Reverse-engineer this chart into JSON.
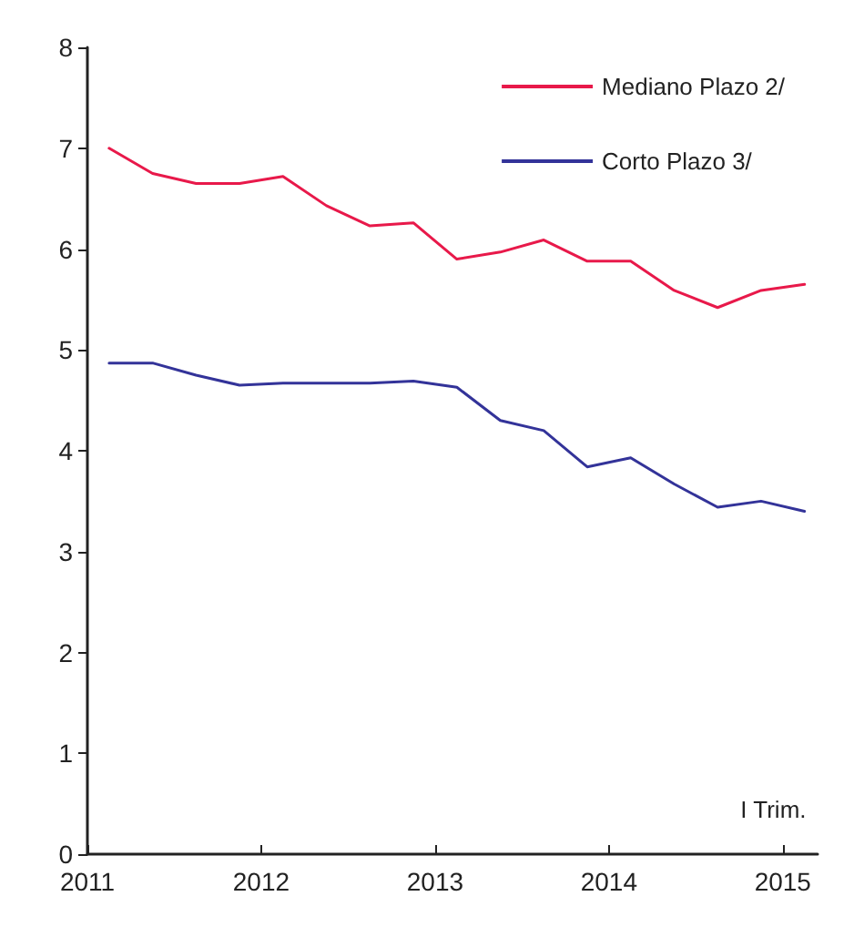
{
  "chart_data": {
    "type": "line",
    "x": [
      2011.125,
      2011.375,
      2011.625,
      2011.875,
      2012.125,
      2012.375,
      2012.625,
      2012.875,
      2013.125,
      2013.375,
      2013.625,
      2013.875,
      2014.125,
      2014.375,
      2014.625,
      2014.875,
      2015.125
    ],
    "series": [
      {
        "name": "Mediano Plazo 2/",
        "color": "#e8194a",
        "values": [
          7.0,
          6.75,
          6.65,
          6.65,
          6.72,
          6.43,
          6.23,
          6.26,
          5.9,
          5.97,
          6.09,
          5.88,
          5.88,
          5.59,
          5.42,
          5.59,
          5.65
        ]
      },
      {
        "name": "Corto Plazo 3/",
        "color": "#333399",
        "values": [
          4.87,
          4.87,
          4.75,
          4.65,
          4.67,
          4.67,
          4.67,
          4.69,
          4.63,
          4.3,
          4.2,
          3.84,
          3.93,
          3.67,
          3.44,
          3.5,
          3.4
        ]
      }
    ],
    "xlim": [
      2011,
      2015.2
    ],
    "xticks": [
      2011,
      2012,
      2013,
      2014,
      2015
    ],
    "ylim": [
      0,
      8
    ],
    "yticks": [
      0,
      1,
      2,
      3,
      4,
      5,
      6,
      7,
      8
    ],
    "annotations": [
      "I Trim."
    ],
    "legend": "top right",
    "grid": false,
    "marker": "none",
    "line_style": "solid"
  }
}
